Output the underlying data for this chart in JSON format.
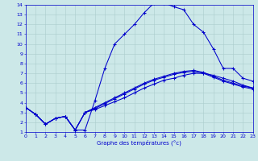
{
  "xlabel": "Graphe des températures (°c)",
  "bg_color": "#cce8e8",
  "line_color": "#0000cc",
  "grid_color": "#aacccc",
  "xlim": [
    0,
    23
  ],
  "ylim": [
    1,
    14
  ],
  "xticks": [
    0,
    1,
    2,
    3,
    4,
    5,
    6,
    7,
    8,
    9,
    10,
    11,
    12,
    13,
    14,
    15,
    16,
    17,
    18,
    19,
    20,
    21,
    22,
    23
  ],
  "yticks": [
    1,
    2,
    3,
    4,
    5,
    6,
    7,
    8,
    9,
    10,
    11,
    12,
    13,
    14
  ],
  "curves": [
    {
      "x": [
        0,
        1,
        2,
        3,
        4,
        5,
        6,
        7,
        8,
        9,
        10,
        11,
        12,
        13,
        14,
        15,
        16,
        17,
        18,
        19,
        20,
        21,
        22,
        23
      ],
      "y": [
        3.5,
        2.8,
        1.8,
        2.4,
        2.6,
        1.2,
        1.2,
        4.2,
        7.5,
        10.0,
        11.0,
        12.0,
        13.2,
        14.2,
        14.2,
        13.8,
        13.5,
        12.0,
        11.2,
        9.5,
        7.5,
        7.5,
        6.5,
        6.2
      ]
    },
    {
      "x": [
        0,
        1,
        2,
        3,
        4,
        5,
        6,
        7,
        8,
        9,
        10,
        11,
        12,
        13,
        14,
        15,
        16,
        17,
        18,
        19,
        20,
        21,
        22,
        23
      ],
      "y": [
        3.5,
        2.8,
        1.8,
        2.4,
        2.6,
        1.2,
        3.0,
        3.3,
        3.7,
        4.1,
        4.5,
        5.0,
        5.5,
        5.9,
        6.3,
        6.5,
        6.8,
        7.0,
        7.0,
        6.8,
        6.5,
        6.2,
        5.8,
        5.5
      ]
    },
    {
      "x": [
        0,
        1,
        2,
        3,
        4,
        5,
        6,
        7,
        8,
        9,
        10,
        11,
        12,
        13,
        14,
        15,
        16,
        17,
        18,
        19,
        20,
        21,
        22,
        23
      ],
      "y": [
        3.5,
        2.8,
        1.8,
        2.4,
        2.6,
        1.2,
        3.0,
        3.4,
        3.9,
        4.4,
        4.9,
        5.4,
        5.9,
        6.3,
        6.6,
        6.9,
        7.1,
        7.2,
        7.0,
        6.6,
        6.2,
        5.9,
        5.6,
        5.4
      ]
    },
    {
      "x": [
        0,
        1,
        2,
        3,
        4,
        5,
        6,
        7,
        8,
        9,
        10,
        11,
        12,
        13,
        14,
        15,
        16,
        17,
        18,
        19,
        20,
        21,
        22,
        23
      ],
      "y": [
        3.5,
        2.8,
        1.8,
        2.4,
        2.6,
        1.2,
        3.0,
        3.5,
        4.0,
        4.5,
        5.0,
        5.5,
        6.0,
        6.4,
        6.7,
        7.0,
        7.2,
        7.3,
        7.1,
        6.7,
        6.3,
        6.0,
        5.7,
        5.5
      ]
    }
  ]
}
